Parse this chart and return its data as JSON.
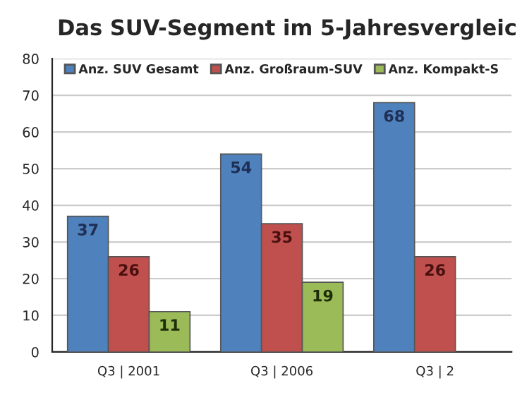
{
  "chart_data": {
    "type": "bar",
    "title": "Das SUV-Segment im 5-Jahresvergleic",
    "categories": [
      "Q3 | 2001",
      "Q3 | 2006",
      "Q3 | 2"
    ],
    "series": [
      {
        "name": "Anz. SUV Gesamt",
        "color": "#4f81bd",
        "values": [
          37,
          54,
          68
        ]
      },
      {
        "name": "Anz. Großraum-SUV",
        "color": "#c0504d",
        "values": [
          26,
          35,
          26
        ]
      },
      {
        "name": "Anz. Kompakt-S",
        "color": "#9bbb59",
        "values": [
          11,
          19,
          null
        ]
      }
    ],
    "ylim": [
      0,
      80
    ],
    "yticks": [
      0,
      10,
      20,
      30,
      40,
      50,
      60,
      70,
      80
    ],
    "grid": "y",
    "legend": "top",
    "data_labels": true
  }
}
